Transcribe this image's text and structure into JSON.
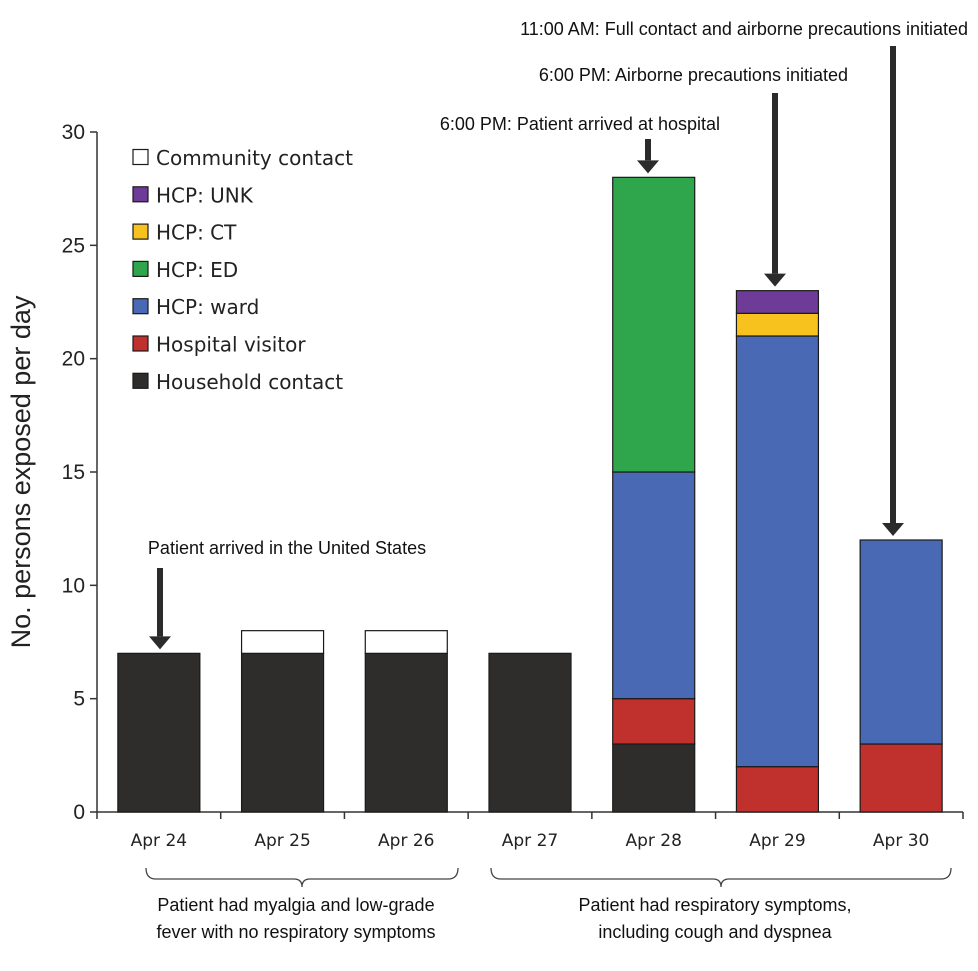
{
  "chart_data": {
    "type": "bar",
    "stacked": true,
    "ylabel": "No. persons exposed per day",
    "xlabel": "",
    "ylim": [
      0,
      30
    ],
    "yticks": [
      0,
      5,
      10,
      15,
      20,
      25,
      30
    ],
    "categories": [
      "Apr 24",
      "Apr 25",
      "Apr 26",
      "Apr 27",
      "Apr 28",
      "Apr 29",
      "Apr 30"
    ],
    "series": [
      {
        "name": "Household contact",
        "color": "#2f2c2c",
        "values": [
          7,
          7,
          7,
          7,
          3,
          0,
          0
        ]
      },
      {
        "name": "Hospital visitor",
        "color": "#c0302d",
        "values": [
          0,
          0,
          0,
          0,
          2,
          2,
          3
        ]
      },
      {
        "name": "HCP: ward",
        "color": "#4a69b4",
        "values": [
          0,
          0,
          0,
          0,
          10,
          19,
          9
        ]
      },
      {
        "name": "HCP: ED",
        "color": "#2fa64c",
        "values": [
          0,
          0,
          0,
          0,
          13,
          0,
          0
        ]
      },
      {
        "name": "HCP: CT",
        "color": "#f7c21e",
        "values": [
          0,
          0,
          0,
          0,
          0,
          1,
          0
        ]
      },
      {
        "name": "HCP: UNK",
        "color": "#6e3b98",
        "values": [
          0,
          0,
          0,
          0,
          0,
          1,
          0
        ]
      },
      {
        "name": "Community contact",
        "color": "#ffffff",
        "values": [
          0,
          1,
          1,
          0,
          0,
          0,
          0
        ]
      }
    ],
    "legend": {
      "position": "top-left",
      "order": [
        "Community contact",
        "HCP: UNK",
        "HCP: CT",
        "HCP: ED",
        "HCP: ward",
        "Hospital visitor",
        "Household contact"
      ]
    },
    "annotations": [
      {
        "text": "Patient arrived in the United States",
        "category": "Apr 24"
      },
      {
        "text": "6:00 PM: Patient arrived at hospital",
        "category": "Apr 28"
      },
      {
        "text": "6:00 PM: Airborne precautions initiated",
        "category": "Apr 29"
      },
      {
        "text": "11:00 AM: Full contact and airborne precautions initiated",
        "category": "Apr 30"
      }
    ],
    "brackets": [
      {
        "lines": [
          "Patient had myalgia and low-grade",
          "fever with no respiratory symptoms"
        ],
        "from": "Apr 24",
        "to": "Apr 26"
      },
      {
        "lines": [
          "Patient had respiratory symptoms,",
          "including cough and dyspnea"
        ],
        "from": "Apr 27",
        "to": "Apr 30"
      }
    ],
    "grid": false
  }
}
